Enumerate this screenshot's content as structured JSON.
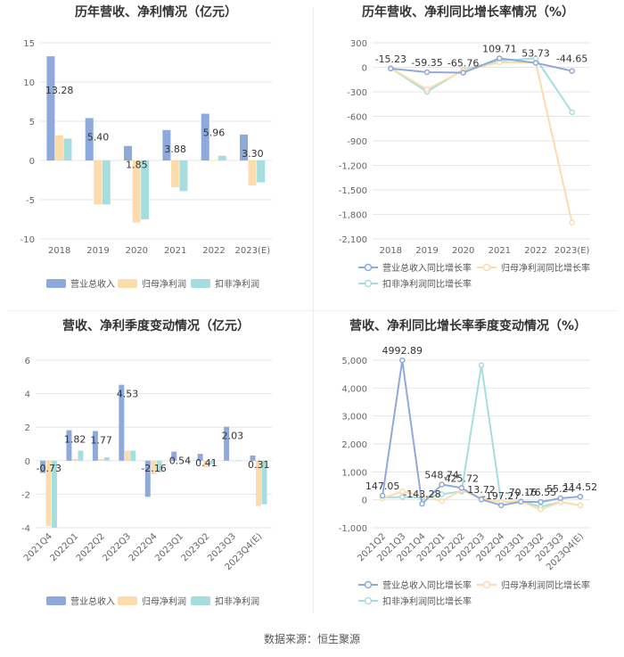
{
  "source": "数据来源：恒生聚源",
  "colors": {
    "revenue": "#8eaadb",
    "net_profit": "#fcdcac",
    "deducted": "#a6dedf",
    "grid": "#e6e6e6",
    "axis_text": "#666666",
    "label_text": "#333333"
  },
  "chart_data": [
    {
      "type": "bar",
      "title": "历年营收、净利情况（亿元）",
      "categories": [
        "2018",
        "2019",
        "2020",
        "2021",
        "2022",
        "2023(E)"
      ],
      "series": [
        {
          "name": "营业总收入",
          "values": [
            13.28,
            5.4,
            1.85,
            3.88,
            5.96,
            3.3
          ],
          "labels": [
            "13.28",
            "5.40",
            "1.85",
            "3.88",
            "5.96",
            "3.30"
          ]
        },
        {
          "name": "归母净利润",
          "values": [
            3.2,
            -5.6,
            -7.9,
            -3.4,
            0.0,
            -3.2
          ]
        },
        {
          "name": "扣非净利润",
          "values": [
            2.8,
            -5.6,
            -7.5,
            -3.9,
            0.6,
            -2.8
          ]
        }
      ],
      "ylim": [
        -10,
        15
      ],
      "yticks": [
        "15",
        "10",
        "5",
        "0",
        "-5",
        "-10"
      ],
      "legend": "bottom"
    },
    {
      "type": "line",
      "title": "历年营收、净利同比增长率情况（%）",
      "categories": [
        "2018",
        "2019",
        "2020",
        "2021",
        "2022",
        "2023(E)"
      ],
      "series": [
        {
          "name": "营业总收入同比增长率",
          "values": [
            -15.23,
            -59.35,
            -65.76,
            109.71,
            53.73,
            -44.65
          ],
          "labels": [
            "-15.23",
            "-59.35",
            "-65.76",
            "109.71",
            "53.73",
            "-44.65"
          ]
        },
        {
          "name": "归母净利润同比增长率",
          "values": [
            -10,
            -270,
            -40,
            60,
            60,
            -1900
          ]
        },
        {
          "name": "扣非净利润同比增长率",
          "values": [
            -10,
            -300,
            -30,
            80,
            110,
            -550
          ]
        }
      ],
      "ylim": [
        -2100,
        300
      ],
      "yticks": [
        "300",
        "0",
        "-300",
        "-600",
        "-900",
        "-1,200",
        "-1,500",
        "-1,800",
        "-2,100"
      ],
      "legend": "bottom"
    },
    {
      "type": "bar",
      "title": "营收、净利季度变动情况（亿元）",
      "categories": [
        "2021Q4",
        "2022Q1",
        "2022Q2",
        "2022Q3",
        "2022Q4",
        "2023Q1",
        "2023Q2",
        "2023Q3",
        "2023Q4(E)"
      ],
      "series": [
        {
          "name": "营业总收入",
          "values": [
            -0.73,
            1.82,
            1.77,
            4.53,
            -2.16,
            0.54,
            0.41,
            2.03,
            0.31
          ],
          "labels": [
            "-0.73",
            "1.82",
            "1.77",
            "4.53",
            "-2.16",
            "0.54",
            "0.41",
            "2.03",
            "0.31"
          ]
        },
        {
          "name": "归母净利润",
          "values": [
            -3.9,
            0.1,
            0.1,
            0.6,
            -0.8,
            0.0,
            -0.4,
            0.0,
            -2.7
          ]
        },
        {
          "name": "扣非净利润",
          "values": [
            -4.0,
            0.6,
            0.2,
            0.6,
            -0.7,
            0.0,
            -0.2,
            0.0,
            -2.6
          ]
        }
      ],
      "ylim": [
        -4,
        6
      ],
      "yticks": [
        "6",
        "4",
        "2",
        "0",
        "-2",
        "-4"
      ],
      "legend": "bottom"
    },
    {
      "type": "line",
      "title": "营收、净利同比增长率季度变动情况（%）",
      "categories": [
        "2021Q2",
        "2021Q3",
        "2021Q4",
        "2022Q1",
        "2022Q2",
        "2022Q3",
        "2022Q4",
        "2023Q1",
        "2023Q2",
        "2023Q3",
        "2023Q4(E)"
      ],
      "series": [
        {
          "name": "营业总收入同比增长率",
          "values": [
            147.05,
            4992.89,
            -143.28,
            548.74,
            425.72,
            13.72,
            -197.27,
            -70.16,
            -76.55,
            55.24,
            114.52
          ],
          "labels": [
            "147.05",
            "4992.89",
            "-143.28",
            "548.74",
            "425.72",
            "13.72",
            "-197.27",
            "-70.16",
            "-76.55",
            "55.24",
            "114.52"
          ]
        },
        {
          "name": "归母净利润同比增长率",
          "values": [
            50,
            300,
            150,
            -50,
            350,
            50,
            -80,
            -50,
            -350,
            -80,
            -200
          ]
        },
        {
          "name": "扣非净利润同比增长率",
          "values": [
            80,
            100,
            80,
            200,
            300,
            4820,
            -80,
            -50,
            -250,
            -80,
            -200
          ]
        }
      ],
      "ylim": [
        -1000,
        5000
      ],
      "yticks": [
        "5,000",
        "4,000",
        "3,000",
        "2,000",
        "1,000",
        "0",
        "-1,000"
      ],
      "legend": "bottom"
    }
  ]
}
